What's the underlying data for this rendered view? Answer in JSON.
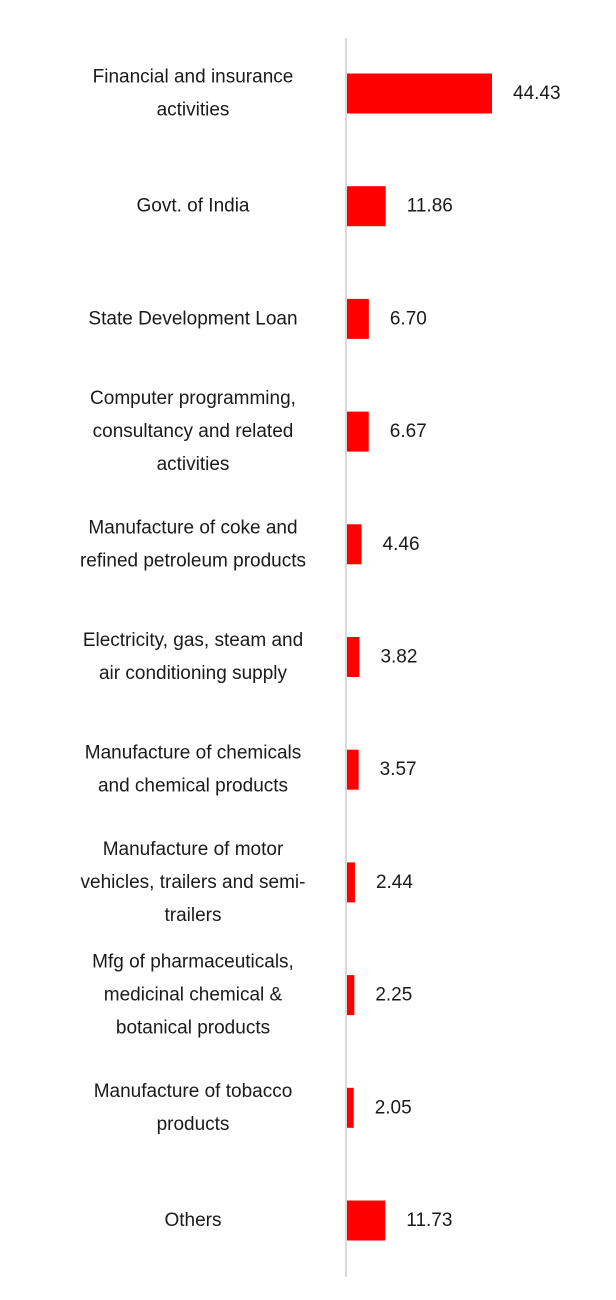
{
  "chart_data": {
    "type": "bar",
    "orientation": "horizontal",
    "categories": [
      [
        "Financial and insurance",
        "activities"
      ],
      [
        "Govt. of India"
      ],
      [
        "State Development Loan"
      ],
      [
        "Computer programming,",
        "consultancy and related",
        "activities"
      ],
      [
        "Manufacture of coke and",
        "refined petroleum products"
      ],
      [
        "Electricity, gas, steam and",
        "air conditioning supply"
      ],
      [
        "Manufacture of chemicals",
        "and chemical products"
      ],
      [
        "Manufacture of motor",
        "vehicles, trailers and semi-",
        "trailers"
      ],
      [
        "Mfg of pharmaceuticals,",
        "medicinal chemical &",
        "botanical products"
      ],
      [
        "Manufacture of tobacco",
        "products"
      ],
      [
        "Others"
      ]
    ],
    "values": [
      44.43,
      11.86,
      6.7,
      6.67,
      4.46,
      3.82,
      3.57,
      2.44,
      2.25,
      2.05,
      11.73
    ],
    "value_labels": [
      "44.43",
      "11.86",
      "6.70",
      "6.67",
      "4.46",
      "3.82",
      "3.57",
      "2.44",
      "2.25",
      "2.05",
      "11.73"
    ],
    "title": "",
    "xlabel": "",
    "ylabel": "",
    "grid": false,
    "legend": "none",
    "colors": {
      "bar": "#ff0000",
      "axis": "#d9d9d9",
      "text": "#1a1a1a"
    }
  }
}
